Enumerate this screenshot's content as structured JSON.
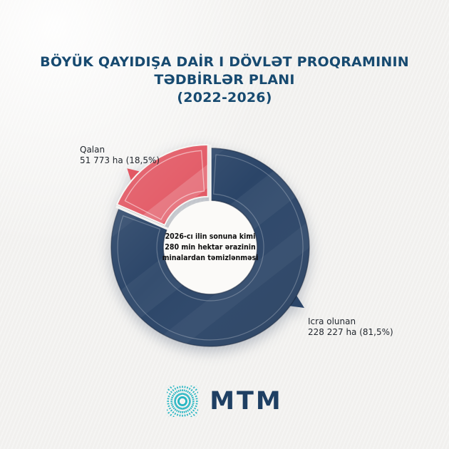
{
  "page": {
    "background": "#f3f2f0"
  },
  "title": {
    "lines": [
      "BÖYÜK QAYIDIŞA DAİR I DÖVLƏT PROQRAMININ",
      "TƏDBİRLƏR PLANI",
      "(2022-2026)"
    ],
    "color": "#174a70"
  },
  "chart_data": {
    "type": "pie",
    "donut": true,
    "title": "Böyük Qayıdışa dair I Dövlət Proqramının Tədbirlər Planı (2022-2026)",
    "center_lines": [
      "2026-cı ilin sonuna kimi",
      "280 min hektar ərazinin",
      "minalardan təmizlənməsi"
    ],
    "total_ha": 280000,
    "start_angle_deg": 0,
    "direction": "clockwise",
    "legend_position": "callout-labels",
    "series": [
      {
        "name": "Icra olunan",
        "value_ha": 228227,
        "percent": 81.5,
        "display": "228 227 ha (81,5%)",
        "color": "#2b4568"
      },
      {
        "name": "Qalan",
        "value_ha": 51773,
        "percent": 18.5,
        "display": "51 773 ha (18,5%)",
        "color": "#e25763"
      }
    ]
  },
  "footer": {
    "brand": "MTM",
    "logo_color": "#27b6c3",
    "text_color": "#1e3f63"
  }
}
